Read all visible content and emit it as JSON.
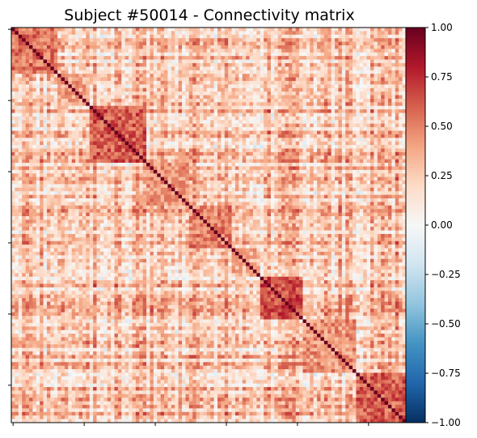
{
  "chart_data": {
    "type": "heatmap",
    "title": "Subject #50014 - Connectivity matrix",
    "matrix_size": 111,
    "value_range": [
      -1.0,
      1.0
    ],
    "diagonal_value": 1.0,
    "colormap": "RdBu_r",
    "colormap_stops": [
      "#053061",
      "#2166ac",
      "#4393c3",
      "#92c5de",
      "#d1e5f0",
      "#f7f7f7",
      "#fddbc7",
      "#f4a582",
      "#d6604d",
      "#b2182b",
      "#67001f"
    ],
    "modules": [
      {
        "start": 0,
        "end": 13,
        "within_corr": 0.55
      },
      {
        "start": 13,
        "end": 22,
        "within_corr": 0.4
      },
      {
        "start": 22,
        "end": 38,
        "within_corr": 0.62
      },
      {
        "start": 38,
        "end": 50,
        "within_corr": 0.45
      },
      {
        "start": 50,
        "end": 62,
        "within_corr": 0.5
      },
      {
        "start": 62,
        "end": 70,
        "within_corr": 0.35
      },
      {
        "start": 70,
        "end": 82,
        "within_corr": 0.65
      },
      {
        "start": 82,
        "end": 97,
        "within_corr": 0.45
      },
      {
        "start": 97,
        "end": 111,
        "within_corr": 0.6
      }
    ],
    "x_tick_indices": [
      0,
      20,
      40,
      60,
      80,
      100
    ],
    "y_tick_indices": [
      0,
      20,
      40,
      60,
      80,
      100
    ],
    "x_tick_labels": [],
    "y_tick_labels": [],
    "colorbar": {
      "ticks": [
        1.0,
        0.75,
        0.5,
        0.25,
        0.0,
        -0.25,
        -0.5,
        -0.75,
        -1.0
      ],
      "tick_labels": [
        "1.00",
        "0.75",
        "0.50",
        "0.25",
        "0.00",
        "−0.25",
        "−0.50",
        "−0.75",
        "−1.00"
      ]
    }
  }
}
